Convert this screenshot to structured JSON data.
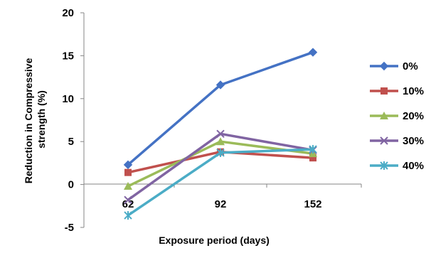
{
  "chart_data": {
    "type": "line",
    "title": "",
    "xlabel": "Exposure period (days)",
    "ylabel_lines": [
      "Reduction in Compressive",
      "strength (%)"
    ],
    "categories": [
      "62",
      "92",
      "152"
    ],
    "ylim": [
      -5,
      20
    ],
    "yticks": [
      -5,
      0,
      5,
      10,
      15,
      20
    ],
    "grid": false,
    "legend_position": "right",
    "series": [
      {
        "name": "0%",
        "values": [
          2.3,
          11.6,
          15.4
        ],
        "color": "#4472C4",
        "marker": "diamond"
      },
      {
        "name": "10%",
        "values": [
          1.4,
          3.8,
          3.1
        ],
        "color": "#C0504D",
        "marker": "square"
      },
      {
        "name": "20%",
        "values": [
          -0.2,
          5.0,
          3.6
        ],
        "color": "#9BBB59",
        "marker": "triangle"
      },
      {
        "name": "30%",
        "values": [
          -1.8,
          5.9,
          4.0
        ],
        "color": "#8064A2",
        "marker": "x"
      },
      {
        "name": "40%",
        "values": [
          -3.6,
          3.7,
          4.1
        ],
        "color": "#4BACC6",
        "marker": "star"
      }
    ]
  }
}
